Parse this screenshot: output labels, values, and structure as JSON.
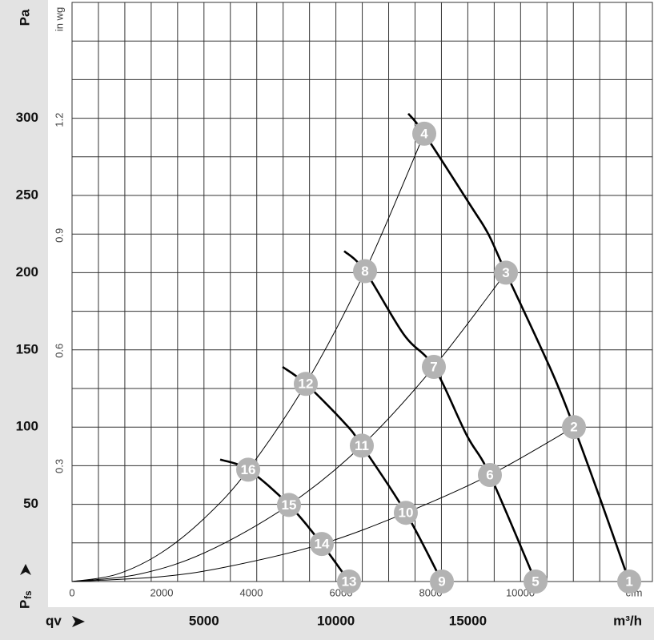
{
  "chart_data": {
    "type": "line",
    "y_label": "Pa",
    "y2_label": "in wg",
    "x_label": "cfm",
    "x2_label": "qv",
    "x2_unit": "m³/h",
    "pressure_label": "P",
    "pressure_sub": "fs",
    "xlim": [
      0,
      12946
    ],
    "xticks": [
      0,
      2000,
      4000,
      6000,
      8000,
      10000
    ],
    "x2lim": [
      0,
      21996
    ],
    "x2ticks": [
      5000,
      10000,
      15000
    ],
    "x2grid": [
      1000,
      2000,
      3000,
      4000,
      5000,
      6000,
      7000,
      8000,
      9000,
      10000,
      11000,
      12000,
      13000,
      14000,
      15000,
      16000,
      17000,
      18000,
      19000,
      20000,
      21000
    ],
    "ylim": [
      0,
      375
    ],
    "yticks": [
      50,
      100,
      150,
      200,
      250,
      300
    ],
    "ygrid": [
      25,
      50,
      75,
      100,
      125,
      150,
      175,
      200,
      225,
      250,
      275,
      300,
      325,
      350
    ],
    "y2lim": [
      0,
      1.5055
    ],
    "y2ticks": [
      0.3,
      0.6,
      0.9,
      1.2
    ],
    "grid": true,
    "series": [
      {
        "color": "#000000",
        "line_style": "thick",
        "x": [
          7500,
          7857,
          8900,
          9286,
          9679,
          10700,
          11196,
          11800,
          12429
        ],
        "values": [
          303,
          290,
          243,
          225,
          200,
          136,
          100,
          52,
          0
        ]
      },
      {
        "color": "#000000",
        "line_style": "thick",
        "x": [
          6071,
          6536,
          7400,
          8071,
          8800,
          9321,
          10339
        ],
        "values": [
          214,
          201,
          160,
          139,
          95,
          69,
          0
        ]
      },
      {
        "color": "#000000",
        "line_style": "thick",
        "x": [
          4696,
          5214,
          6100,
          6464,
          7446,
          8250
        ],
        "values": [
          139,
          128,
          102,
          88,
          44.5,
          0
        ]
      },
      {
        "color": "#000000",
        "line_style": "thick",
        "x": [
          3304,
          3929,
          4839,
          5571,
          6179
        ],
        "values": [
          79,
          72.4,
          49.6,
          24.3,
          0
        ]
      },
      {
        "color": "#000000",
        "line_style": "thin",
        "x": [
          0,
          1000,
          2000,
          3000,
          3929,
          5214,
          6536,
          7857
        ],
        "values": [
          0,
          4.7,
          18.8,
          42.3,
          72.4,
          128,
          201,
          290
        ]
      },
      {
        "color": "#000000",
        "line_style": "thin",
        "x": [
          0,
          1500,
          3000,
          4839,
          6464,
          8071,
          9679
        ],
        "values": [
          0,
          4.8,
          19.2,
          49.6,
          88,
          139,
          200
        ]
      },
      {
        "color": "#000000",
        "line_style": "thin",
        "x": [
          0,
          2000,
          3500,
          5571,
          7446,
          9321,
          11196
        ],
        "values": [
          0,
          3.2,
          9.8,
          24.3,
          44.5,
          69,
          100
        ]
      }
    ],
    "marker_color": "#b3b3b3",
    "points": [
      {
        "label": "1",
        "x": 12429,
        "y": 0
      },
      {
        "label": "2",
        "x": 11196,
        "y": 100
      },
      {
        "label": "3",
        "x": 9679,
        "y": 200
      },
      {
        "label": "4",
        "x": 7857,
        "y": 290
      },
      {
        "label": "5",
        "x": 10339,
        "y": 0
      },
      {
        "label": "6",
        "x": 9321,
        "y": 69
      },
      {
        "label": "7",
        "x": 8071,
        "y": 139
      },
      {
        "label": "8",
        "x": 6536,
        "y": 201
      },
      {
        "label": "9",
        "x": 8250,
        "y": 0
      },
      {
        "label": "10",
        "x": 7446,
        "y": 44.5
      },
      {
        "label": "11",
        "x": 6464,
        "y": 88
      },
      {
        "label": "12",
        "x": 5214,
        "y": 128
      },
      {
        "label": "13",
        "x": 6179,
        "y": 0
      },
      {
        "label": "14",
        "x": 5571,
        "y": 24.3
      },
      {
        "label": "15",
        "x": 4839,
        "y": 49.6
      },
      {
        "label": "16",
        "x": 3929,
        "y": 72.4
      }
    ]
  }
}
